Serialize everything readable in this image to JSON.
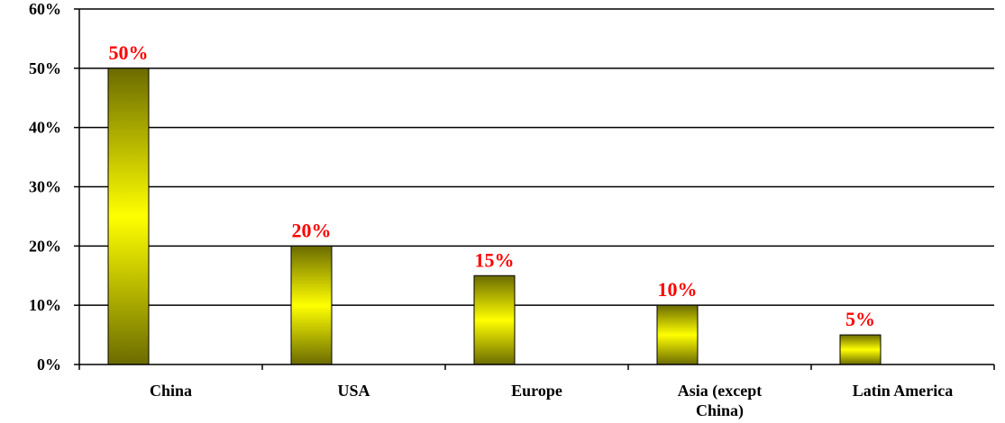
{
  "chart_data": {
    "type": "bar",
    "title": "",
    "xlabel": "",
    "ylabel": "",
    "categories": [
      [
        "China"
      ],
      [
        "USA"
      ],
      [
        "Europe"
      ],
      [
        "Asia (except",
        "China)"
      ],
      [
        "Latin America"
      ]
    ],
    "values": [
      50,
      20,
      15,
      10,
      5
    ],
    "data_labels": [
      "50%",
      "20%",
      "15%",
      "10%",
      "5%"
    ],
    "ylim": [
      0,
      60
    ],
    "yticks": [
      0,
      10,
      20,
      30,
      40,
      50,
      60
    ],
    "ytick_labels": [
      "0%",
      "10%",
      "20%",
      "30%",
      "40%",
      "50%",
      "60%"
    ],
    "grid": true,
    "legend": "none",
    "colors": {
      "bar_edge": "#6b6b00",
      "bar_center": "#ffff00",
      "bar_outline": "#000000",
      "data_label": "#ff0000",
      "grid": "#000000",
      "axis": "#000000"
    }
  }
}
